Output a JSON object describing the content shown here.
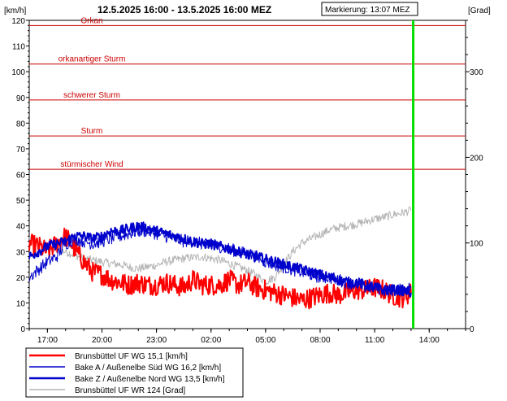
{
  "header": {
    "left_unit": "[km/h]",
    "right_unit": "[Grad]",
    "title": "12.5.2025 16:00 - 13.5.2025 16:00   MEZ",
    "marker_label": "Markierung: 13:07 MEZ"
  },
  "chart_data": {
    "type": "line",
    "x_unit": "hours since 12.5.2025 16:00 MEZ",
    "xlim": [
      0,
      24
    ],
    "x_ticks": [
      1,
      4,
      7,
      10,
      13,
      16,
      19,
      22
    ],
    "x_tick_labels": [
      "17:00",
      "20:00",
      "23:00",
      "02:00",
      "05:00",
      "08:00",
      "11:00",
      "14:00"
    ],
    "y_left": {
      "lim": [
        0,
        120
      ],
      "ticks": [
        0,
        10,
        20,
        30,
        40,
        50,
        60,
        70,
        80,
        90,
        100,
        110,
        120
      ]
    },
    "y_right": {
      "lim": [
        0,
        360
      ],
      "ticks": [
        0,
        100,
        200,
        300
      ],
      "minor_step": 20
    },
    "marker_x": 21.12,
    "marker_color": "#00dd00",
    "thresholds": [
      {
        "label": "Orkan",
        "y": 118
      },
      {
        "label": "orkanartiger Sturm",
        "y": 103
      },
      {
        "label": "schwerer Sturm",
        "y": 89
      },
      {
        "label": "Sturm",
        "y": 75
      },
      {
        "label": "stürmischer Wind",
        "y": 62
      }
    ],
    "threshold_color": "#cc0000",
    "series": [
      {
        "name": "Brunsbüttel UF  WG 15,1 [km/h]",
        "axis": "left",
        "color": "#ff0000",
        "width": 2,
        "x": [
          0,
          0.5,
          1,
          1.5,
          2,
          2.5,
          3,
          3.5,
          4,
          4.5,
          5,
          5.5,
          6,
          6.5,
          7,
          7.5,
          8,
          8.5,
          9,
          9.5,
          10,
          10.5,
          11,
          11.5,
          12,
          12.5,
          13,
          13.5,
          14,
          14.5,
          15,
          15.5,
          16,
          16.5,
          17,
          17.5,
          18,
          18.5,
          19,
          19.5,
          20,
          20.5,
          21
        ],
        "y": [
          33,
          32,
          30,
          33,
          36,
          31,
          26,
          22,
          21,
          19,
          18,
          17,
          18,
          17,
          17,
          18,
          17,
          16,
          19,
          17,
          17,
          17,
          19,
          17,
          18,
          16,
          15,
          14,
          13,
          12,
          11,
          12,
          13,
          14,
          13,
          14,
          15,
          15,
          16,
          15,
          13,
          12,
          14
        ]
      },
      {
        "name": "Bake A / Außenelbe Süd  WG 16,2 [km/h]",
        "axis": "left",
        "color": "#0000cc",
        "width": 1,
        "x": [
          0,
          0.5,
          1,
          1.5,
          2,
          2.5,
          3,
          3.5,
          4,
          4.5,
          5,
          5.5,
          6,
          6.5,
          7,
          7.5,
          8,
          8.5,
          9,
          9.5,
          10,
          10.5,
          11,
          11.5,
          12,
          12.5,
          13,
          13.5,
          14,
          14.5,
          15,
          15.5,
          16,
          16.5,
          17,
          17.5,
          18,
          18.5,
          19,
          19.5,
          20,
          20.5,
          21
        ],
        "y": [
          20,
          23,
          26,
          28,
          33,
          35,
          34,
          33,
          34,
          35,
          36,
          37,
          38,
          38,
          37,
          36,
          35,
          34,
          34,
          33,
          32,
          32,
          31,
          30,
          29,
          28,
          26,
          25,
          24,
          23,
          22,
          21,
          20,
          20,
          19,
          18,
          17,
          16,
          16,
          15,
          15,
          15,
          16
        ]
      },
      {
        "name": "Bake Z / Außenelbe Nord  WG 13,5 [km/h]",
        "axis": "left",
        "color": "#0000cc",
        "width": 2,
        "x": [
          0,
          0.5,
          1,
          1.5,
          2,
          2.5,
          3,
          3.5,
          4,
          4.5,
          5,
          5.5,
          6,
          6.5,
          7,
          7.5,
          8,
          8.5,
          9,
          9.5,
          10,
          10.5,
          11,
          11.5,
          12,
          12.5,
          13,
          13.5,
          14,
          14.5,
          15,
          15.5,
          16,
          16.5,
          17,
          17.5,
          18,
          18.5,
          19,
          19.5,
          20,
          20.5,
          21
        ],
        "y": [
          28,
          30,
          32,
          33,
          34,
          36,
          36,
          35,
          36,
          38,
          38,
          39,
          40,
          39,
          38,
          37,
          36,
          35,
          34,
          33,
          33,
          32,
          31,
          30,
          29,
          28,
          27,
          26,
          25,
          24,
          23,
          22,
          21,
          20,
          19,
          18,
          18,
          17,
          16,
          15,
          15,
          15,
          14
        ]
      },
      {
        "name": "Brunsbüttel UF  WR 124 [Grad]",
        "axis": "right",
        "color": "#b4b4b4",
        "width": 1,
        "x": [
          0,
          0.5,
          1,
          1.5,
          2,
          2.5,
          3,
          3.5,
          4,
          4.5,
          5,
          5.5,
          6,
          6.5,
          7,
          7.5,
          8,
          8.5,
          9,
          9.5,
          10,
          10.5,
          11,
          11.5,
          12,
          12.5,
          13,
          13.5,
          14,
          14.5,
          15,
          15.5,
          16,
          16.5,
          17,
          17.5,
          18,
          18.5,
          19,
          19.5,
          20,
          20.5,
          21
        ],
        "y": [
          105,
          100,
          95,
          92,
          90,
          86,
          82,
          80,
          78,
          76,
          75,
          72,
          70,
          72,
          74,
          78,
          80,
          82,
          83,
          84,
          82,
          80,
          76,
          72,
          68,
          62,
          55,
          60,
          75,
          90,
          100,
          105,
          110,
          115,
          118,
          120,
          122,
          125,
          128,
          130,
          133,
          135,
          138
        ]
      }
    ]
  }
}
